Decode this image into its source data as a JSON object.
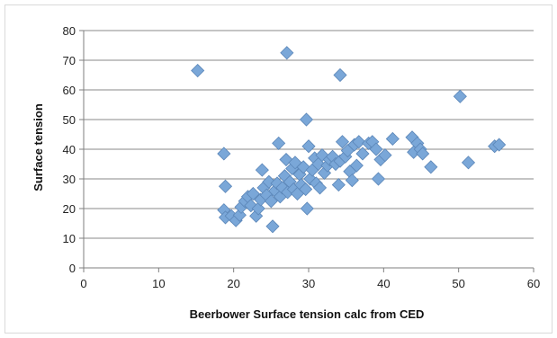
{
  "chart_data": {
    "type": "scatter",
    "title": "",
    "xlabel": "Beerbower Surface tension calc from CED",
    "ylabel": "Surface tension",
    "xlim": [
      0,
      60
    ],
    "ylim": [
      0,
      80
    ],
    "xticks": [
      "0",
      "10",
      "20",
      "30",
      "40",
      "50",
      "60"
    ],
    "yticks": [
      "0",
      "10",
      "20",
      "30",
      "40",
      "50",
      "60",
      "70",
      "80"
    ],
    "grid": "horizontal",
    "legend": "none",
    "marker": "diamond",
    "marker_color": "#7aa7d8",
    "marker_edge_color": "#5b86b8",
    "points": [
      {
        "x": 15.2,
        "y": 66.5
      },
      {
        "x": 27.1,
        "y": 72.5
      },
      {
        "x": 34.2,
        "y": 65.0
      },
      {
        "x": 50.2,
        "y": 57.8
      },
      {
        "x": 29.7,
        "y": 50.0
      },
      {
        "x": 18.7,
        "y": 38.5
      },
      {
        "x": 18.9,
        "y": 27.5
      },
      {
        "x": 18.7,
        "y": 19.5
      },
      {
        "x": 18.9,
        "y": 17.0
      },
      {
        "x": 19.7,
        "y": 17.5
      },
      {
        "x": 20.3,
        "y": 16.0
      },
      {
        "x": 20.8,
        "y": 17.8
      },
      {
        "x": 21.0,
        "y": 20.5
      },
      {
        "x": 21.5,
        "y": 22.5
      },
      {
        "x": 21.9,
        "y": 24.0
      },
      {
        "x": 22.3,
        "y": 21.0
      },
      {
        "x": 22.6,
        "y": 25.0
      },
      {
        "x": 23.0,
        "y": 17.5
      },
      {
        "x": 23.3,
        "y": 20.0
      },
      {
        "x": 23.6,
        "y": 23.0
      },
      {
        "x": 23.8,
        "y": 33.0
      },
      {
        "x": 24.0,
        "y": 27.0
      },
      {
        "x": 24.4,
        "y": 24.5
      },
      {
        "x": 24.7,
        "y": 29.0
      },
      {
        "x": 25.0,
        "y": 22.5
      },
      {
        "x": 25.2,
        "y": 14.0
      },
      {
        "x": 25.5,
        "y": 26.0
      },
      {
        "x": 25.8,
        "y": 28.5
      },
      {
        "x": 26.0,
        "y": 42.0
      },
      {
        "x": 26.2,
        "y": 24.0
      },
      {
        "x": 26.5,
        "y": 27.0
      },
      {
        "x": 26.8,
        "y": 31.0
      },
      {
        "x": 27.0,
        "y": 36.5
      },
      {
        "x": 27.2,
        "y": 25.5
      },
      {
        "x": 27.5,
        "y": 29.0
      },
      {
        "x": 27.8,
        "y": 33.5
      },
      {
        "x": 28.0,
        "y": 26.5
      },
      {
        "x": 28.2,
        "y": 35.5
      },
      {
        "x": 28.5,
        "y": 25.0
      },
      {
        "x": 28.8,
        "y": 31.5
      },
      {
        "x": 29.0,
        "y": 28.0
      },
      {
        "x": 29.3,
        "y": 34.0
      },
      {
        "x": 29.6,
        "y": 26.5
      },
      {
        "x": 29.8,
        "y": 20.0
      },
      {
        "x": 30.0,
        "y": 41.0
      },
      {
        "x": 30.2,
        "y": 30.0
      },
      {
        "x": 30.5,
        "y": 33.0
      },
      {
        "x": 30.8,
        "y": 37.0
      },
      {
        "x": 31.0,
        "y": 28.5
      },
      {
        "x": 31.3,
        "y": 35.0
      },
      {
        "x": 31.5,
        "y": 27.0
      },
      {
        "x": 31.8,
        "y": 38.0
      },
      {
        "x": 32.1,
        "y": 32.0
      },
      {
        "x": 32.5,
        "y": 34.5
      },
      {
        "x": 32.8,
        "y": 36.5
      },
      {
        "x": 33.2,
        "y": 37.5
      },
      {
        "x": 33.6,
        "y": 35.0
      },
      {
        "x": 34.0,
        "y": 28.0
      },
      {
        "x": 34.2,
        "y": 36.0
      },
      {
        "x": 34.5,
        "y": 42.5
      },
      {
        "x": 34.9,
        "y": 37.5
      },
      {
        "x": 35.2,
        "y": 39.5
      },
      {
        "x": 35.5,
        "y": 32.5
      },
      {
        "x": 35.8,
        "y": 29.5
      },
      {
        "x": 36.1,
        "y": 41.5
      },
      {
        "x": 36.4,
        "y": 34.5
      },
      {
        "x": 36.7,
        "y": 42.5
      },
      {
        "x": 37.2,
        "y": 38.5
      },
      {
        "x": 38.0,
        "y": 42.0
      },
      {
        "x": 38.5,
        "y": 42.5
      },
      {
        "x": 39.0,
        "y": 40.0
      },
      {
        "x": 39.3,
        "y": 30.0
      },
      {
        "x": 39.6,
        "y": 36.5
      },
      {
        "x": 40.2,
        "y": 38.0
      },
      {
        "x": 41.2,
        "y": 43.5
      },
      {
        "x": 43.8,
        "y": 44.0
      },
      {
        "x": 44.0,
        "y": 39.0
      },
      {
        "x": 44.5,
        "y": 42.0
      },
      {
        "x": 44.9,
        "y": 40.0
      },
      {
        "x": 45.2,
        "y": 38.5
      },
      {
        "x": 46.3,
        "y": 34.0
      },
      {
        "x": 51.3,
        "y": 35.5
      },
      {
        "x": 54.8,
        "y": 41.0
      },
      {
        "x": 55.4,
        "y": 41.5
      }
    ]
  }
}
